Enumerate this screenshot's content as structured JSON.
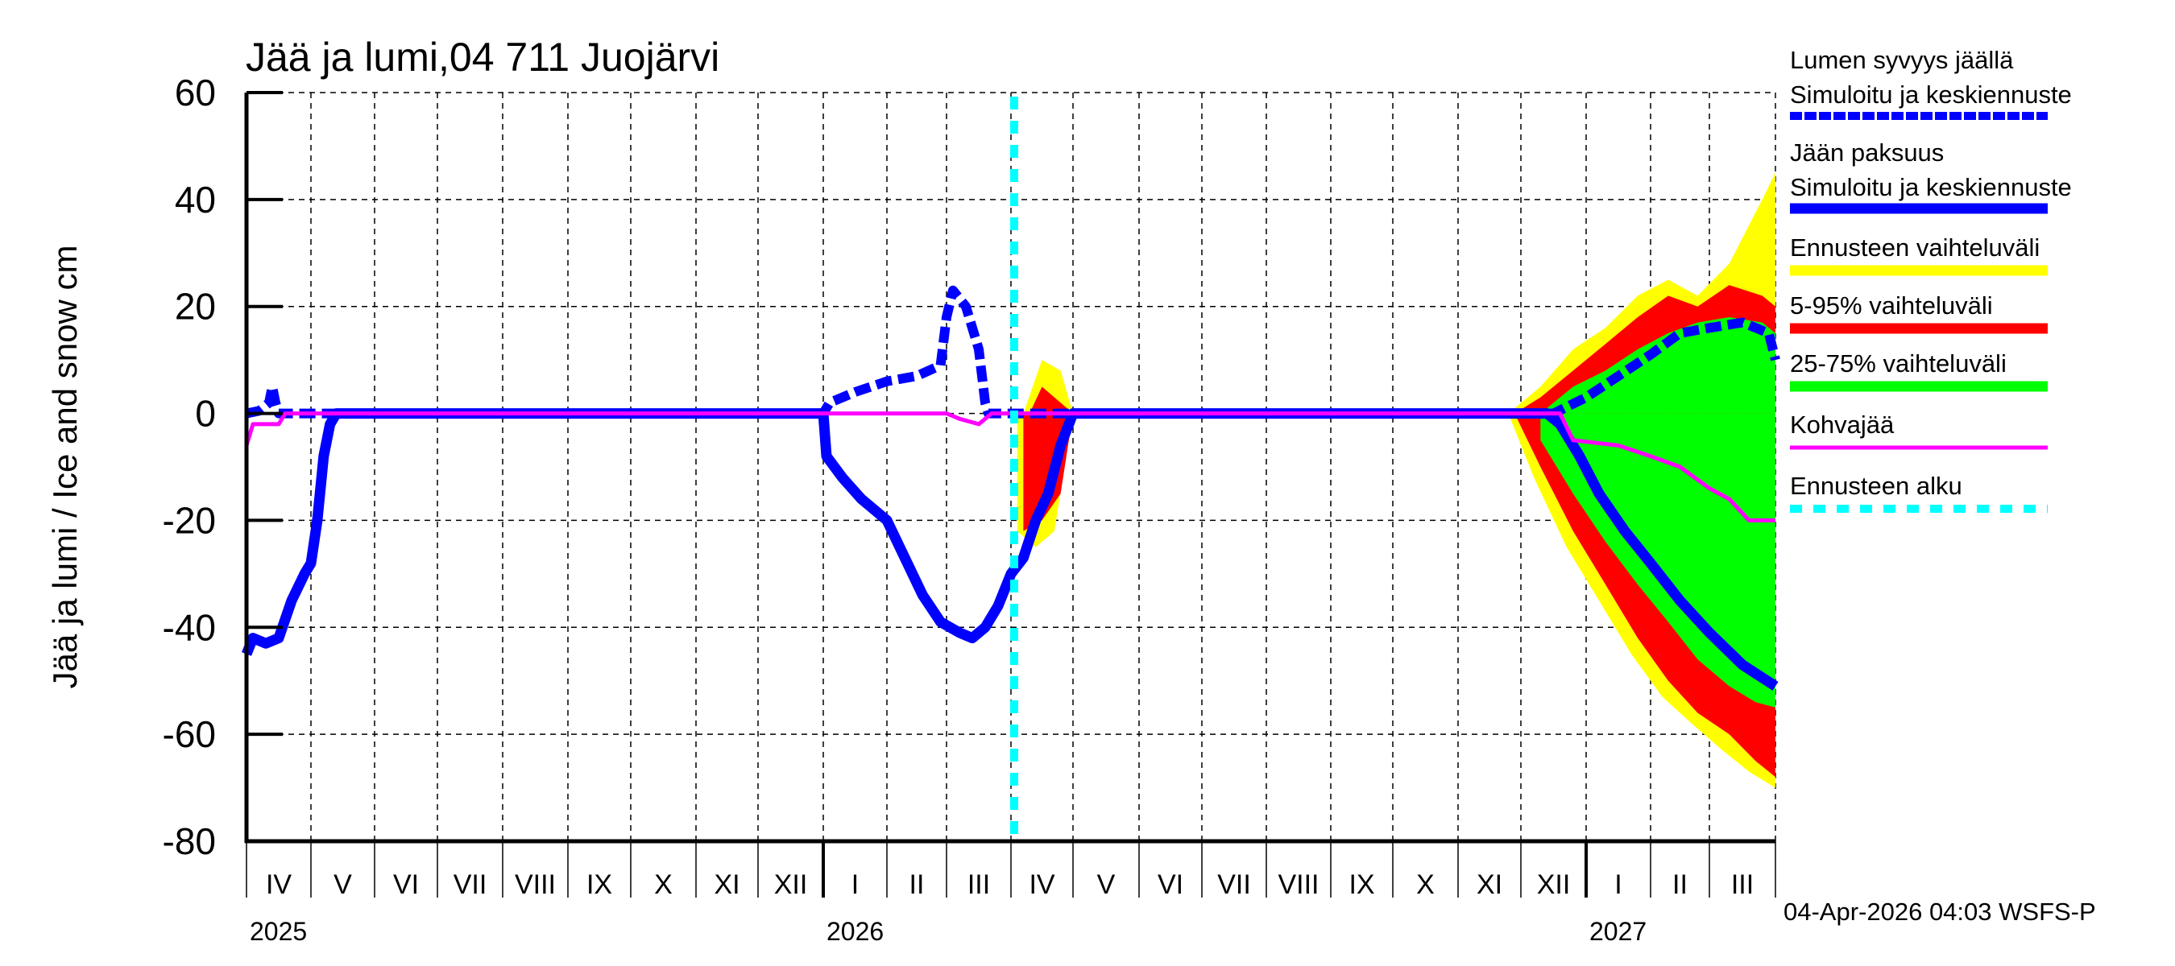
{
  "chart_data": {
    "type": "area",
    "title": "Jää ja lumi,04 711 Juojärvi",
    "ylabel": "Jää ja lumi / Ice and snow    cm",
    "xlabel": "",
    "ylim": [
      -80,
      60
    ],
    "yticks": [
      60,
      40,
      20,
      0,
      -20,
      -40,
      -60,
      -80
    ],
    "grid": true,
    "legend_position": "right",
    "x_months": [
      {
        "label": "IV",
        "year": "2025"
      },
      {
        "label": "V"
      },
      {
        "label": "VI"
      },
      {
        "label": "VII"
      },
      {
        "label": "VIII"
      },
      {
        "label": "IX"
      },
      {
        "label": "X"
      },
      {
        "label": "XI"
      },
      {
        "label": "XII"
      },
      {
        "label": "I",
        "year": "2026"
      },
      {
        "label": "II"
      },
      {
        "label": "III"
      },
      {
        "label": "IV"
      },
      {
        "label": "V"
      },
      {
        "label": "VI"
      },
      {
        "label": "VII"
      },
      {
        "label": "VIII"
      },
      {
        "label": "IX"
      },
      {
        "label": "X"
      },
      {
        "label": "XI"
      },
      {
        "label": "XII"
      },
      {
        "label": "I",
        "year": "2027"
      },
      {
        "label": "II"
      },
      {
        "label": "III"
      }
    ],
    "years": [
      "2025",
      "2026",
      "2027"
    ],
    "forecast_start": "2026-04-04",
    "x_unit": "months since 2025-04-01",
    "series": [
      {
        "name": "Lumen syvyys jäällä – Simuloitu ja keskiennuste",
        "style": "dashed",
        "color": "#0000ff",
        "points": [
          [
            0,
            0
          ],
          [
            0.2,
            0.5
          ],
          [
            0.35,
            2
          ],
          [
            0.4,
            5
          ],
          [
            0.45,
            2
          ],
          [
            0.5,
            0
          ],
          [
            9.0,
            0
          ],
          [
            9.1,
            2
          ],
          [
            9.5,
            4
          ],
          [
            10.0,
            6
          ],
          [
            10.5,
            7
          ],
          [
            10.9,
            9
          ],
          [
            11.0,
            18
          ],
          [
            11.1,
            23
          ],
          [
            11.3,
            20
          ],
          [
            11.5,
            12
          ],
          [
            11.6,
            2
          ],
          [
            11.65,
            0
          ],
          [
            20.5,
            0
          ],
          [
            21.0,
            3
          ],
          [
            21.5,
            7
          ],
          [
            22.0,
            11
          ],
          [
            22.5,
            15
          ],
          [
            23.0,
            16
          ],
          [
            23.5,
            17
          ],
          [
            23.9,
            15
          ],
          [
            24.0,
            10
          ]
        ]
      },
      {
        "name": "Jään paksuus – Simuloitu ja keskiennuste",
        "style": "solid",
        "color": "#0000ff",
        "points": [
          [
            0,
            -45
          ],
          [
            0.1,
            -42
          ],
          [
            0.3,
            -43
          ],
          [
            0.5,
            -42
          ],
          [
            0.7,
            -35
          ],
          [
            0.9,
            -30
          ],
          [
            1.0,
            -28
          ],
          [
            1.1,
            -20
          ],
          [
            1.2,
            -8
          ],
          [
            1.3,
            -2
          ],
          [
            1.4,
            0
          ],
          [
            9.0,
            0
          ],
          [
            9.05,
            -8
          ],
          [
            9.3,
            -12
          ],
          [
            9.6,
            -16
          ],
          [
            10.0,
            -20
          ],
          [
            10.3,
            -27
          ],
          [
            10.6,
            -34
          ],
          [
            10.9,
            -39
          ],
          [
            11.2,
            -41
          ],
          [
            11.4,
            -42
          ],
          [
            11.6,
            -40
          ],
          [
            11.8,
            -36
          ],
          [
            12.0,
            -30
          ],
          [
            12.2,
            -27
          ],
          [
            12.4,
            -20
          ],
          [
            12.6,
            -15
          ],
          [
            12.8,
            -6
          ],
          [
            13.0,
            0
          ],
          [
            20.4,
            0
          ],
          [
            20.6,
            -2
          ],
          [
            20.9,
            -8
          ],
          [
            21.2,
            -15
          ],
          [
            21.6,
            -22
          ],
          [
            22.0,
            -28
          ],
          [
            22.5,
            -35
          ],
          [
            23.0,
            -41
          ],
          [
            23.5,
            -47
          ],
          [
            24.0,
            -51
          ]
        ]
      },
      {
        "name": "Kohvajää",
        "style": "solid",
        "color": "#ff00ff",
        "points": [
          [
            0,
            -6
          ],
          [
            0.1,
            -2
          ],
          [
            0.5,
            -2
          ],
          [
            0.6,
            0
          ],
          [
            11.0,
            0
          ],
          [
            11.2,
            -1
          ],
          [
            11.5,
            -2
          ],
          [
            11.7,
            0
          ],
          [
            20.6,
            0
          ],
          [
            20.8,
            -5
          ],
          [
            21.5,
            -6
          ],
          [
            22.0,
            -8
          ],
          [
            22.5,
            -10
          ],
          [
            23.0,
            -14
          ],
          [
            23.3,
            -16
          ],
          [
            23.6,
            -20
          ],
          [
            24.0,
            -20
          ]
        ]
      }
    ],
    "bands": [
      {
        "name": "Ennusteen vaihteluväli",
        "color": "#ffff00",
        "snow_upper": [
          [
            12.2,
            0
          ],
          [
            12.5,
            10
          ],
          [
            12.8,
            8
          ],
          [
            13.0,
            0
          ],
          [
            19.8,
            0
          ],
          [
            20.3,
            5
          ],
          [
            20.8,
            12
          ],
          [
            21.3,
            16
          ],
          [
            21.8,
            22
          ],
          [
            22.3,
            25
          ],
          [
            22.8,
            22
          ],
          [
            23.3,
            28
          ],
          [
            23.8,
            40
          ],
          [
            24.0,
            45
          ]
        ],
        "ice_lower": [
          [
            12.1,
            -22
          ],
          [
            12.4,
            -25
          ],
          [
            12.7,
            -22
          ],
          [
            13.0,
            0
          ],
          [
            19.8,
            0
          ],
          [
            20.2,
            -12
          ],
          [
            20.7,
            -25
          ],
          [
            21.2,
            -35
          ],
          [
            21.7,
            -45
          ],
          [
            22.2,
            -53
          ],
          [
            22.7,
            -58
          ],
          [
            23.2,
            -63
          ],
          [
            23.6,
            -67
          ],
          [
            24.0,
            -70
          ]
        ]
      },
      {
        "name": "5-95% vaihteluväli",
        "color": "#ff0000",
        "snow_upper": [
          [
            12.3,
            0
          ],
          [
            12.5,
            5
          ],
          [
            12.8,
            2
          ],
          [
            13.0,
            0
          ],
          [
            19.9,
            0
          ],
          [
            20.3,
            3
          ],
          [
            20.8,
            8
          ],
          [
            21.3,
            13
          ],
          [
            21.8,
            18
          ],
          [
            22.3,
            22
          ],
          [
            22.8,
            20
          ],
          [
            23.3,
            24
          ],
          [
            23.8,
            22
          ],
          [
            24.0,
            20
          ]
        ],
        "ice_lower": [
          [
            12.2,
            -22
          ],
          [
            12.5,
            -20
          ],
          [
            12.8,
            -15
          ],
          [
            13.0,
            0
          ],
          [
            19.9,
            0
          ],
          [
            20.3,
            -10
          ],
          [
            20.8,
            -22
          ],
          [
            21.3,
            -32
          ],
          [
            21.8,
            -42
          ],
          [
            22.3,
            -50
          ],
          [
            22.8,
            -56
          ],
          [
            23.3,
            -60
          ],
          [
            23.7,
            -65
          ],
          [
            24.0,
            -68
          ]
        ]
      },
      {
        "name": "25-75% vaihteluväli",
        "color": "#00ff00",
        "snow_upper": [
          [
            20.3,
            0
          ],
          [
            20.8,
            5
          ],
          [
            21.3,
            8
          ],
          [
            21.8,
            12
          ],
          [
            22.3,
            15
          ],
          [
            22.8,
            17
          ],
          [
            23.3,
            18
          ],
          [
            23.8,
            17
          ],
          [
            24.0,
            15
          ]
        ],
        "ice_lower": [
          [
            20.3,
            -5
          ],
          [
            20.8,
            -15
          ],
          [
            21.3,
            -24
          ],
          [
            21.8,
            -32
          ],
          [
            22.3,
            -39
          ],
          [
            22.8,
            -46
          ],
          [
            23.3,
            -51
          ],
          [
            23.7,
            -54
          ],
          [
            24.0,
            -55
          ]
        ]
      }
    ]
  },
  "header": {
    "title": "Jää ja lumi,04 711 Juojärvi"
  },
  "axis": {
    "ylabel": "Jää ja lumi / Ice and snow    cm",
    "yticks": [
      "60",
      "40",
      "20",
      "0",
      "-20",
      "-40",
      "-60",
      "-80"
    ],
    "months": [
      "IV",
      "V",
      "VI",
      "VII",
      "VIII",
      "IX",
      "X",
      "XI",
      "XII",
      "I",
      "II",
      "III",
      "IV",
      "V",
      "VI",
      "VII",
      "VIII",
      "IX",
      "X",
      "XI",
      "XII",
      "I",
      "II",
      "III"
    ],
    "years": [
      {
        "label": "2025"
      },
      {
        "label": "2026"
      },
      {
        "label": "2027"
      }
    ]
  },
  "legend": {
    "items": [
      {
        "line1": "Lumen syvyys jäällä",
        "line2": "Simuloitu ja keskiennuste",
        "color": "#0000ff",
        "style": "dashed"
      },
      {
        "line1": "Jään paksuus",
        "line2": "Simuloitu ja keskiennuste",
        "color": "#0000ff",
        "style": "solid"
      },
      {
        "line1": "Ennusteen vaihteluväli",
        "color": "#ffff00",
        "style": "solid"
      },
      {
        "line1": "5-95% vaihteluväli",
        "color": "#ff0000",
        "style": "solid"
      },
      {
        "line1": "25-75% vaihteluväli",
        "color": "#00ff00",
        "style": "solid"
      },
      {
        "line1": "Kohvajää",
        "color": "#ff00ff",
        "style": "thin"
      },
      {
        "line1": "Ennusteen alku",
        "color": "#00ffff",
        "style": "dotted"
      }
    ]
  },
  "footer": {
    "timestamp": "04-Apr-2026 04:03 WSFS-P"
  },
  "colors": {
    "snow": "#0000ff",
    "ice": "#0000ff",
    "range": "#ffff00",
    "p5_95": "#ff0000",
    "p25_75": "#00ff00",
    "slush": "#ff00ff",
    "forecast_start": "#00ffff"
  }
}
